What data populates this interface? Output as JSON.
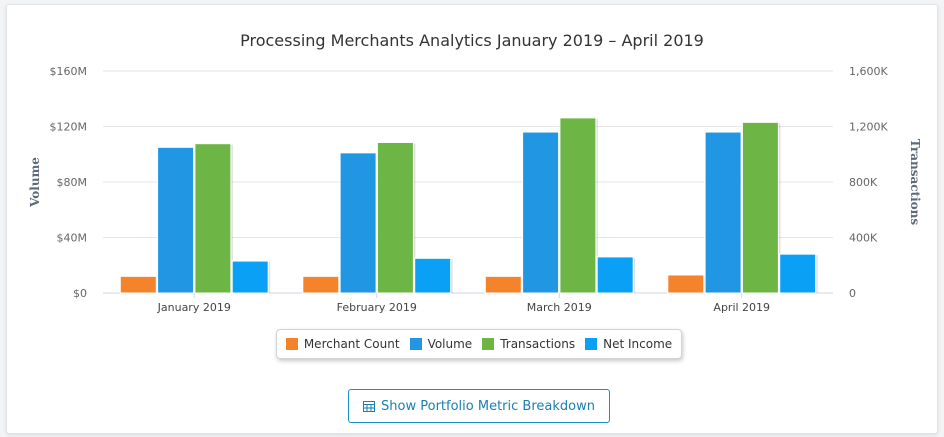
{
  "chart_data": {
    "type": "bar",
    "title": "Processing Merchants Analytics January 2019 – April 2019",
    "categories": [
      "January 2019",
      "February 2019",
      "March 2019",
      "April 2019"
    ],
    "y_left": {
      "label": "Volume",
      "ticks": [
        "$0",
        "$40M",
        "$80M",
        "$120M",
        "$160M"
      ],
      "ylim": [
        0,
        160
      ]
    },
    "y_right": {
      "label": "Transactions",
      "ticks": [
        "0",
        "400K",
        "800K",
        "1,200K",
        "1,600K"
      ],
      "ylim": [
        0,
        1600
      ]
    },
    "series": [
      {
        "name": "Merchant Count",
        "axis": "left",
        "unit": "$M",
        "color": "#f5832b",
        "values": [
          12,
          12,
          12,
          13
        ]
      },
      {
        "name": "Volume",
        "axis": "left",
        "unit": "$M",
        "color": "#2196e3",
        "values": [
          105,
          101,
          116,
          116
        ]
      },
      {
        "name": "Transactions",
        "axis": "right",
        "unit": "K",
        "color": "#6db645",
        "values": [
          1076,
          1085,
          1262,
          1230
        ]
      },
      {
        "name": "Net Income",
        "axis": "left",
        "unit": "$M",
        "color": "#0aa0f5",
        "values": [
          23,
          25,
          26,
          28
        ]
      }
    ],
    "grid": true,
    "legend_position": "bottom"
  },
  "button": {
    "label": "Show Portfolio Metric Breakdown",
    "icon": "table-icon"
  }
}
